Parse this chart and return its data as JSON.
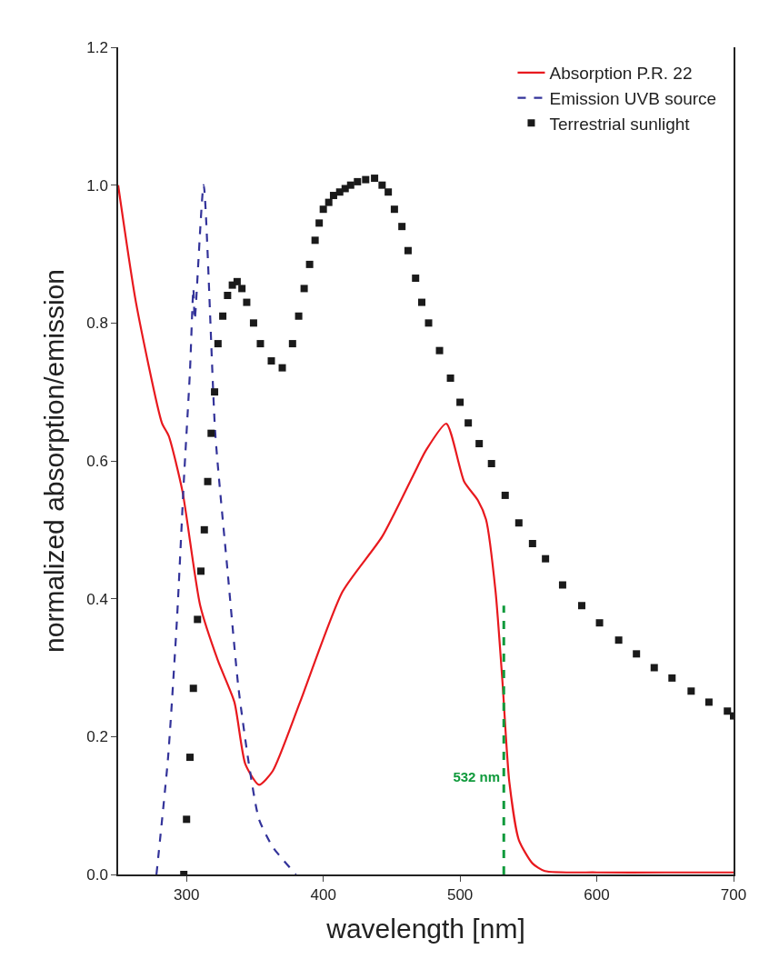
{
  "chart_data": {
    "type": "line",
    "xlabel": "wavelength [nm]",
    "ylabel": "normalized absorption/emission",
    "xlim": [
      250,
      700
    ],
    "ylim": [
      0,
      1.2
    ],
    "xticks": [
      300,
      400,
      500,
      600,
      700
    ],
    "yticks": [
      {
        "value": 0,
        "label": "0.0"
      },
      {
        "value": 0.2,
        "label": "0.2"
      },
      {
        "value": 0.4,
        "label": "0.4"
      },
      {
        "value": 0.6,
        "label": "0.6"
      },
      {
        "value": 0.8,
        "label": "0.8"
      },
      {
        "value": 1,
        "label": "1.0"
      },
      {
        "value": 1.2,
        "label": "1.2"
      }
    ],
    "grid": false,
    "legend": "top right",
    "series": [
      {
        "name": "Absorption P.R. 22",
        "color": "#e8191e",
        "line_style": "solid",
        "marker": "none",
        "x": [
          250,
          263,
          282,
          287,
          297,
          310,
          323,
          335,
          343,
          353,
          363,
          383,
          414,
          443,
          466,
          475,
          490,
          503,
          513,
          519,
          526,
          531,
          536,
          543,
          553,
          562,
          600,
          650,
          700
        ],
        "values": [
          1.0,
          0.83,
          0.655,
          0.636,
          0.556,
          0.39,
          0.31,
          0.25,
          0.16,
          0.13,
          0.15,
          0.25,
          0.41,
          0.49,
          0.58,
          0.615,
          0.654,
          0.57,
          0.543,
          0.515,
          0.41,
          0.28,
          0.135,
          0.05,
          0.016,
          0.005,
          0.003,
          0.003,
          0.003
        ]
      },
      {
        "name": "Emission UVB source",
        "color": "#33339a",
        "line_style": "dashed",
        "marker": "none",
        "x": [
          278,
          286.5,
          293,
          298,
          302.5,
          305,
          306,
          312.5,
          321,
          330,
          338,
          346,
          353,
          363,
          380
        ],
        "values": [
          0,
          0.17,
          0.37,
          0.57,
          0.73,
          0.85,
          0.805,
          1.0,
          0.64,
          0.44,
          0.27,
          0.155,
          0.08,
          0.04,
          0
        ]
      },
      {
        "name": "Terrestrial sunlight",
        "type": "scatter",
        "color": "#1a1a1a",
        "marker": "square",
        "x": [
          298,
          300,
          302.5,
          305,
          308,
          310.5,
          313,
          315.5,
          318,
          320.5,
          323,
          326.5,
          330,
          333.5,
          337,
          340.5,
          344,
          349,
          354,
          362,
          370,
          377.5,
          382,
          386,
          390,
          394,
          397,
          400,
          404,
          407.5,
          412,
          416,
          420,
          425,
          431,
          437.5,
          443,
          447.5,
          452,
          457.5,
          462,
          467.5,
          472,
          477,
          485,
          493,
          500,
          506,
          514,
          523,
          533,
          543,
          553,
          562.5,
          575,
          589,
          602,
          616,
          629,
          642,
          655,
          669,
          682,
          695.5,
          700
        ],
        "values": [
          0,
          0.08,
          0.17,
          0.27,
          0.37,
          0.44,
          0.5,
          0.57,
          0.64,
          0.7,
          0.77,
          0.81,
          0.84,
          0.855,
          0.86,
          0.85,
          0.83,
          0.8,
          0.77,
          0.745,
          0.735,
          0.77,
          0.81,
          0.85,
          0.885,
          0.92,
          0.945,
          0.965,
          0.975,
          0.985,
          0.99,
          0.995,
          1.0,
          1.005,
          1.008,
          1.01,
          1.0,
          0.99,
          0.965,
          0.94,
          0.905,
          0.865,
          0.83,
          0.8,
          0.76,
          0.72,
          0.685,
          0.655,
          0.625,
          0.596,
          0.55,
          0.51,
          0.48,
          0.458,
          0.42,
          0.39,
          0.365,
          0.34,
          0.32,
          0.3,
          0.285,
          0.266,
          0.25,
          0.237,
          0.23
        ]
      },
      {
        "color": "#109a3c",
        "line_style": "dashed",
        "marker": "none",
        "x": [
          532,
          532
        ],
        "values": [
          0,
          0.39
        ]
      }
    ],
    "annotations": [
      {
        "text": "532 nm",
        "x": 532,
        "y": 0.14
      }
    ]
  }
}
